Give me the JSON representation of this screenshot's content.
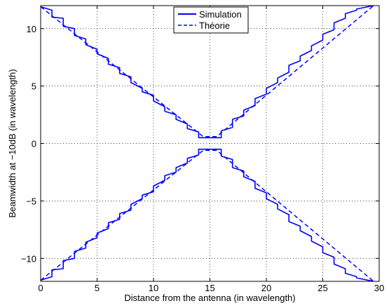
{
  "chart_data": {
    "type": "line",
    "title": "",
    "xlabel": "Distance from the antenna (in wavelength)",
    "ylabel": "Beamwidth at −10dB (in wavelength)",
    "xlim": [
      0,
      30
    ],
    "ylim": [
      -12,
      12
    ],
    "xticks": [
      0,
      5,
      10,
      15,
      20,
      25,
      30
    ],
    "yticks": [
      -10,
      -5,
      0,
      5,
      10
    ],
    "xtick_labels": [
      "0",
      "5",
      "10",
      "15",
      "20",
      "25",
      "30"
    ],
    "ytick_labels": [
      "−10",
      "−5",
      "0",
      "5",
      "10"
    ],
    "grid": true,
    "legend_position": "top-center",
    "series": [
      {
        "name": "Simulation",
        "style": "solid",
        "color": "#0000ff",
        "upper": {
          "x": [
            0,
            1,
            1,
            2,
            2,
            3,
            3,
            4,
            4,
            5,
            5,
            6,
            6,
            7,
            7,
            8,
            8,
            9,
            9,
            10,
            10,
            11,
            11,
            12,
            12,
            13,
            13,
            14,
            14,
            16,
            16,
            17,
            17,
            18,
            18,
            19,
            19,
            20,
            20,
            21,
            21,
            22,
            22,
            23,
            23,
            24,
            24,
            25,
            25,
            26,
            26,
            27,
            27,
            28,
            28,
            29,
            29,
            29.5
          ],
          "y": [
            11.9,
            11.6,
            11.0,
            10.9,
            10.2,
            10.0,
            9.4,
            9.1,
            8.6,
            8.2,
            7.8,
            7.4,
            6.9,
            6.6,
            6.1,
            5.8,
            5.3,
            4.8,
            4.5,
            4.2,
            3.7,
            3.2,
            2.8,
            2.5,
            2.1,
            1.7,
            1.3,
            1.0,
            0.5,
            0.5,
            1.1,
            1.4,
            2.1,
            2.4,
            2.9,
            3.3,
            3.9,
            4.3,
            4.8,
            5.3,
            5.7,
            6.2,
            6.8,
            7.2,
            7.6,
            8.1,
            8.5,
            9.0,
            9.5,
            9.9,
            10.5,
            10.9,
            11.3,
            11.6,
            11.7,
            11.9,
            11.9,
            12.0
          ]
        },
        "lower": {
          "x": [
            0,
            1,
            1,
            2,
            2,
            3,
            3,
            4,
            4,
            5,
            5,
            6,
            6,
            7,
            7,
            8,
            8,
            9,
            9,
            10,
            10,
            11,
            11,
            12,
            12,
            13,
            13,
            14,
            14,
            16,
            16,
            17,
            17,
            18,
            18,
            19,
            19,
            20,
            20,
            21,
            21,
            22,
            22,
            23,
            23,
            24,
            24,
            25,
            25,
            26,
            26,
            27,
            27,
            28,
            28,
            29,
            29,
            29.5
          ],
          "y": [
            -11.9,
            -11.6,
            -11.0,
            -10.9,
            -10.2,
            -10.0,
            -9.4,
            -9.1,
            -8.6,
            -8.2,
            -7.8,
            -7.4,
            -6.9,
            -6.6,
            -6.1,
            -5.8,
            -5.3,
            -4.8,
            -4.5,
            -4.2,
            -3.7,
            -3.2,
            -2.8,
            -2.5,
            -2.1,
            -1.7,
            -1.3,
            -1.0,
            -0.5,
            -0.5,
            -1.1,
            -1.4,
            -2.1,
            -2.4,
            -2.9,
            -3.3,
            -3.9,
            -4.3,
            -4.8,
            -5.3,
            -5.7,
            -6.2,
            -6.8,
            -7.2,
            -7.6,
            -8.1,
            -8.5,
            -9.0,
            -9.5,
            -9.9,
            -10.5,
            -10.9,
            -11.3,
            -11.6,
            -11.7,
            -11.9,
            -11.9,
            -12.0
          ]
        }
      },
      {
        "name": "Théorie",
        "style": "dashed",
        "color": "#0000ff",
        "upper": {
          "x": [
            0,
            14.4,
            15.6,
            29.5
          ],
          "y": [
            11.9,
            0.6,
            0.6,
            12.0
          ]
        },
        "lower": {
          "x": [
            0,
            14.4,
            15.6,
            29.5
          ],
          "y": [
            -11.9,
            -0.6,
            -0.6,
            -12.0
          ]
        }
      }
    ]
  }
}
